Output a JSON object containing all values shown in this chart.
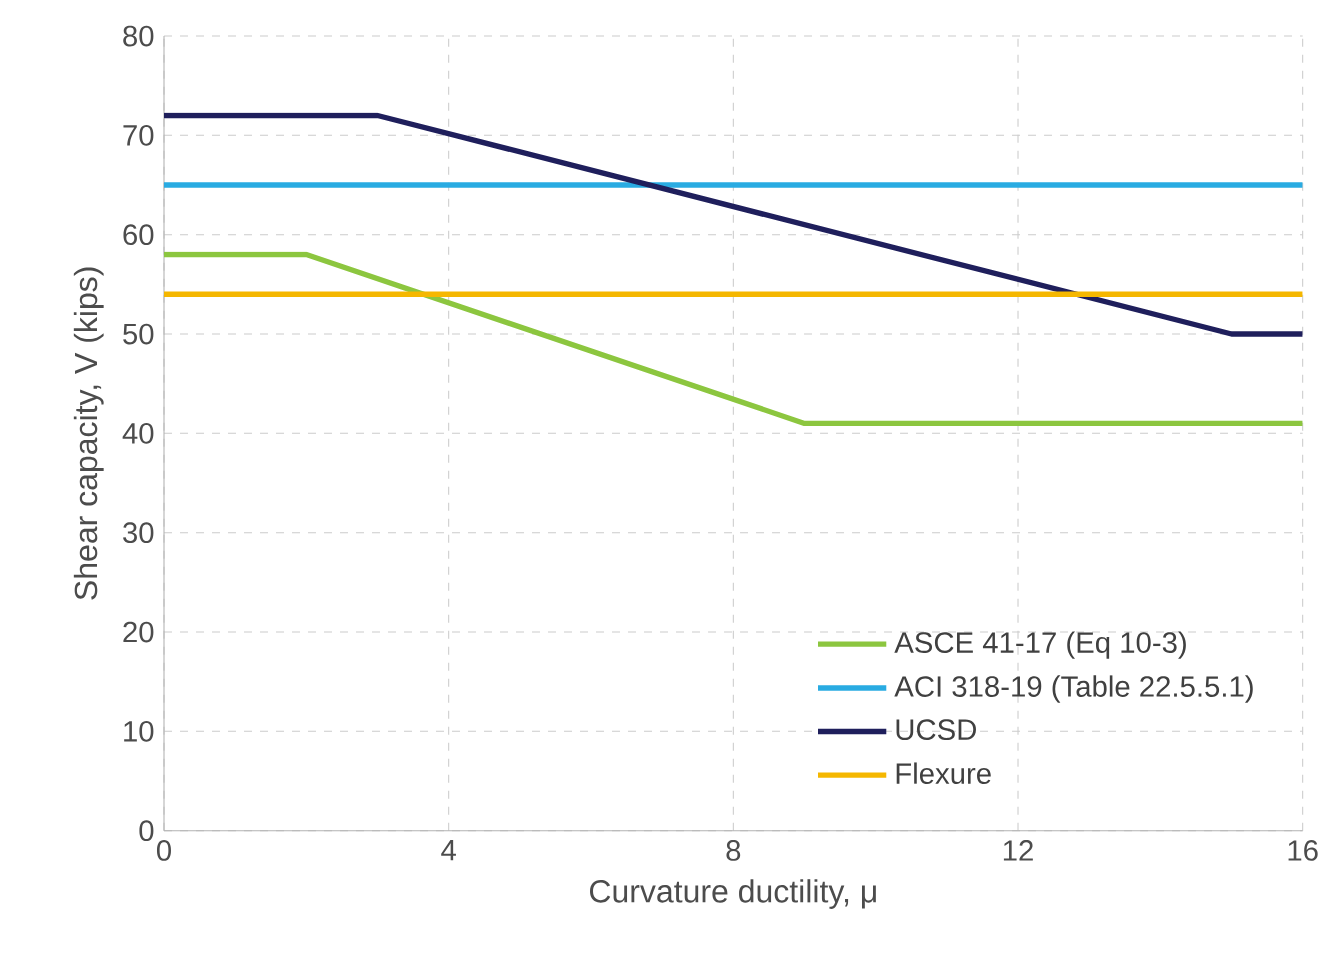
{
  "chart_data": {
    "type": "line",
    "xlabel": "Curvature ductility, μ",
    "ylabel": "Shear capacity, V (kips)",
    "xlim": [
      0,
      16
    ],
    "xticks": [
      0,
      4,
      8,
      12,
      16
    ],
    "ylim": [
      0,
      80
    ],
    "yticks": [
      0,
      10,
      20,
      30,
      40,
      50,
      60,
      70,
      80
    ],
    "grid": true,
    "legend": "bottom right",
    "marker": "none",
    "line_style": "solid",
    "series": [
      {
        "name": "ASCE 41-17 (Eq 10-3)",
        "color": "#8cc63f",
        "x": [
          0,
          2,
          9,
          16
        ],
        "values": [
          58,
          58,
          41,
          41
        ]
      },
      {
        "name": "ACI 318-19 (Table 22.5.5.1)",
        "color": "#29abe2",
        "x": [
          0,
          16
        ],
        "values": [
          65,
          65
        ]
      },
      {
        "name": "UCSD",
        "color": "#1f1f5c",
        "x": [
          0,
          3,
          15,
          16
        ],
        "values": [
          72,
          72,
          50,
          50
        ]
      },
      {
        "name": "Flexure",
        "color": "#f5b700",
        "x": [
          0,
          16
        ],
        "values": [
          54,
          54
        ]
      }
    ]
  }
}
